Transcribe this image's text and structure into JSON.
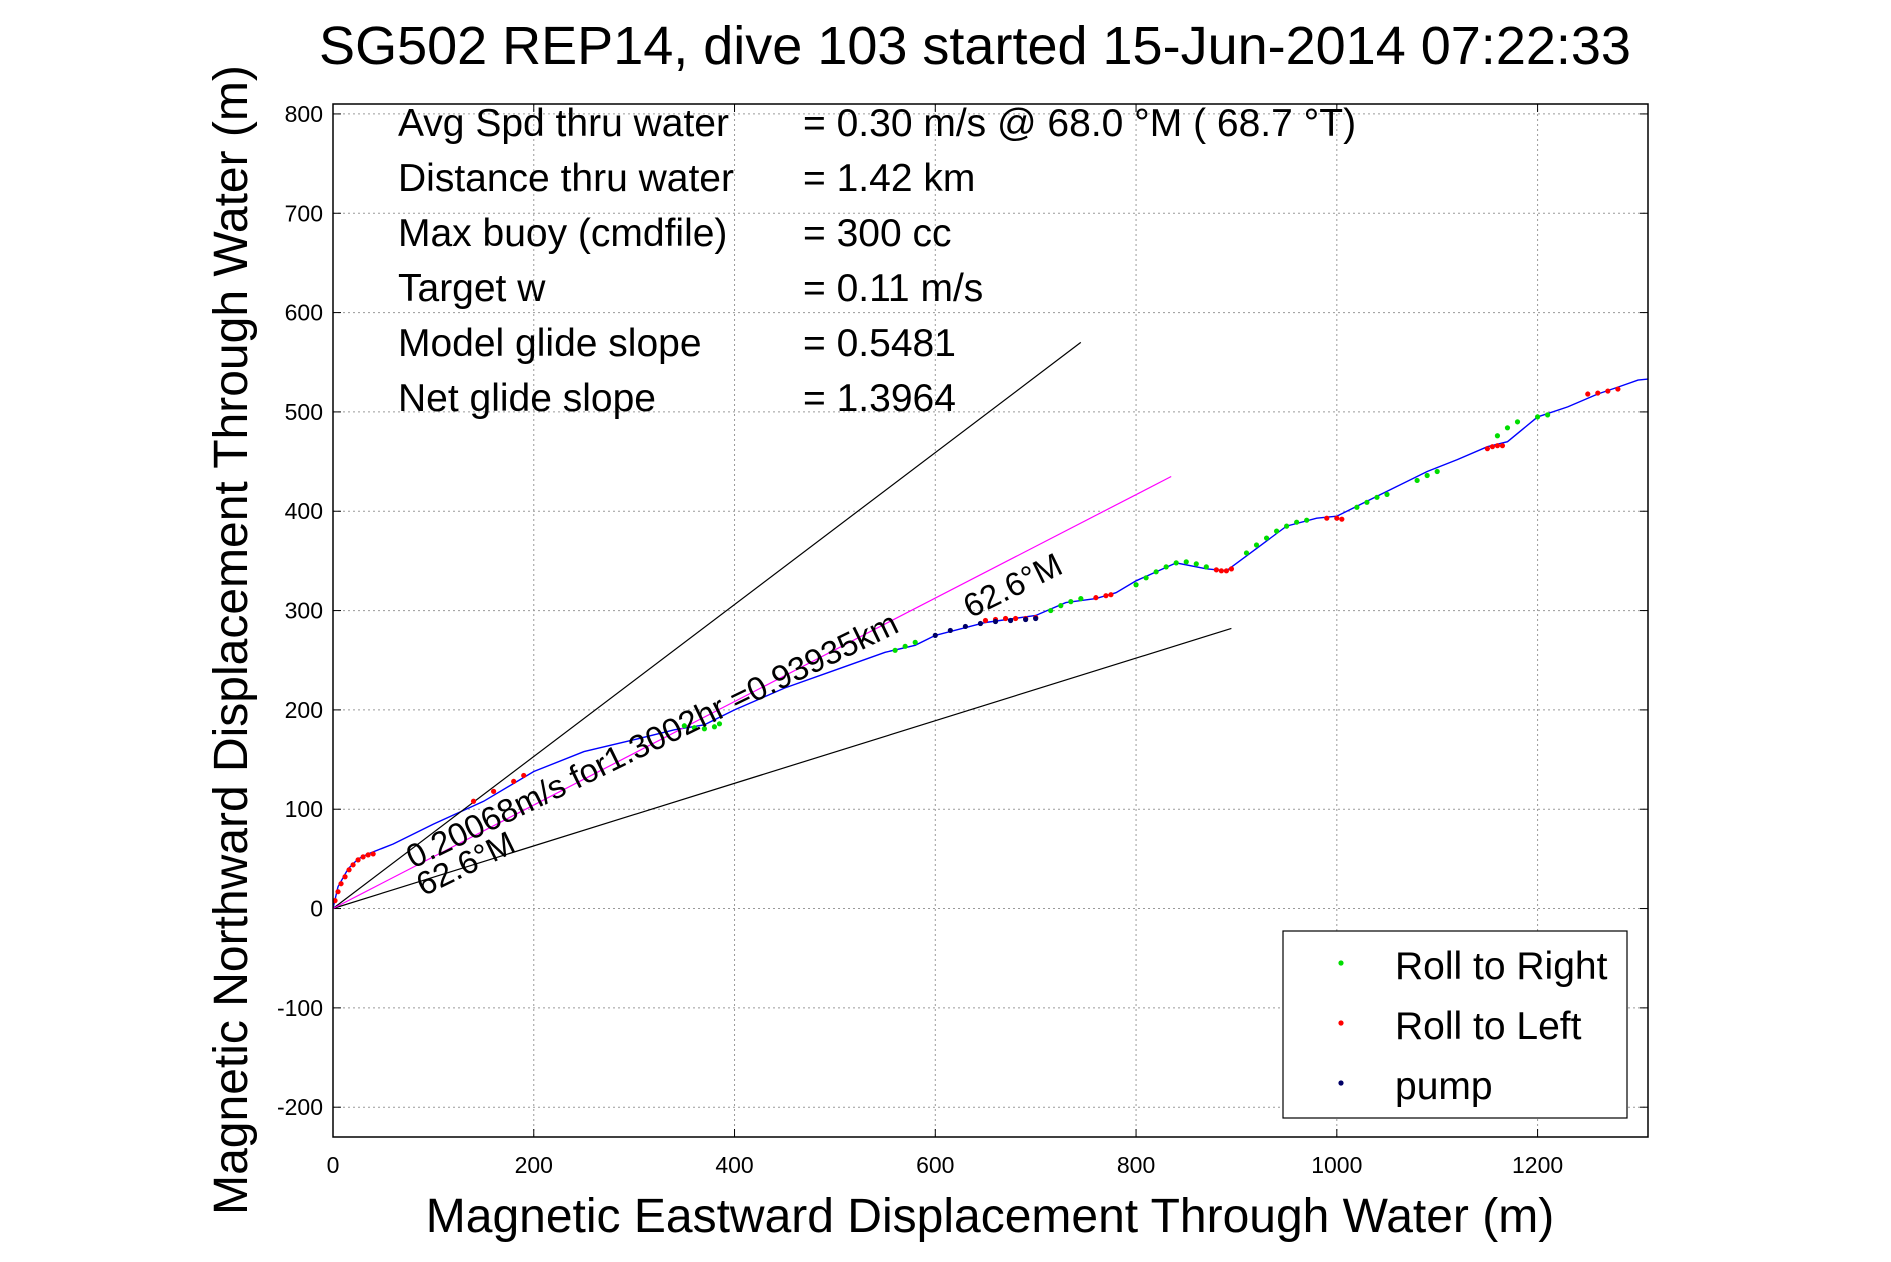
{
  "chart_data": {
    "type": "line",
    "title": "SG502 REP14, dive 103 started 15-Jun-2014 07:22:33",
    "xlabel": "Magnetic Eastward Displacement Through Water (m)",
    "ylabel": "Magnetic Northward Displacement Through Water (m)",
    "xlim": [
      0,
      1310
    ],
    "ylim": [
      -230,
      810
    ],
    "xticks": [
      0,
      200,
      400,
      600,
      800,
      1000,
      1200
    ],
    "yticks": [
      -200,
      -100,
      0,
      100,
      200,
      300,
      400,
      500,
      600,
      700,
      800
    ],
    "xtick_labels": [
      "0",
      "200",
      "400",
      "600",
      "800",
      "1000",
      "1200"
    ],
    "ytick_labels": [
      "-200",
      "-100",
      "0",
      "100",
      "200",
      "300",
      "400",
      "500",
      "600",
      "700",
      "800"
    ],
    "grid": true,
    "legend_position": "bottom-right",
    "stats": [
      {
        "label": "Avg Spd thru water",
        "value": "=  0.30 m/s @  68.0 °M ( 68.7 °T)"
      },
      {
        "label": "Distance thru water",
        "value": "=  1.42 km"
      },
      {
        "label": "Max buoy (cmdfile)",
        "value": "= 300 cc"
      },
      {
        "label": "Target w",
        "value": "= 0.11 m/s"
      },
      {
        "label": "Model glide slope",
        "value": "= 0.5481"
      },
      {
        "label": "Net glide slope",
        "value": "= 1.3964"
      }
    ],
    "annotations": [
      {
        "text": "0.20068m/s for1.3002hr =0.93935km",
        "x": 80,
        "y": 40,
        "angle_deg": -26
      },
      {
        "text": "62.6°M",
        "x": 635,
        "y": 292,
        "angle_deg": -26
      },
      {
        "text": "62.6°M",
        "x": 90,
        "y": 12,
        "angle_deg": -26
      }
    ],
    "series": [
      {
        "name": "track",
        "color": "#0000ff",
        "x": [
          0,
          5,
          15,
          25,
          35,
          60,
          100,
          150,
          200,
          250,
          300,
          340,
          370,
          400,
          450,
          500,
          550,
          580,
          600,
          650,
          700,
          730,
          760,
          780,
          800,
          840,
          870,
          890,
          910,
          950,
          980,
          1000,
          1030,
          1060,
          1090,
          1120,
          1150,
          1170,
          1200,
          1230,
          1260,
          1280,
          1300,
          1310
        ],
        "y": [
          0,
          22,
          40,
          50,
          55,
          65,
          85,
          108,
          138,
          158,
          170,
          180,
          185,
          200,
          222,
          240,
          258,
          265,
          275,
          288,
          295,
          308,
          312,
          318,
          330,
          348,
          342,
          340,
          355,
          385,
          393,
          395,
          410,
          425,
          440,
          452,
          465,
          470,
          495,
          505,
          518,
          525,
          532,
          533
        ]
      },
      {
        "name": "guide-upper",
        "color": "#000000",
        "x": [
          0,
          745
        ],
        "y": [
          0,
          570
        ]
      },
      {
        "name": "guide-lower",
        "color": "#000000",
        "x": [
          0,
          895
        ],
        "y": [
          0,
          282
        ]
      },
      {
        "name": "depth-averaged current",
        "color": "#ff00ff",
        "x": [
          0,
          835
        ],
        "y": [
          0,
          435
        ]
      },
      {
        "name": "Roll to Right",
        "color": "#00dd00",
        "marker": ".",
        "x": [
          350,
          360,
          370,
          380,
          385,
          560,
          570,
          580,
          715,
          725,
          735,
          745,
          800,
          810,
          820,
          830,
          840,
          850,
          860,
          870,
          910,
          920,
          930,
          940,
          950,
          960,
          970,
          1020,
          1030,
          1040,
          1050,
          1080,
          1090,
          1100,
          1160,
          1170,
          1180,
          1200,
          1210
        ],
        "y": [
          184,
          182,
          181,
          183,
          186,
          260,
          264,
          268,
          300,
          305,
          309,
          312,
          326,
          333,
          339,
          344,
          348,
          349,
          347,
          344,
          358,
          366,
          373,
          380,
          385,
          389,
          391,
          404,
          409,
          414,
          417,
          431,
          436,
          440,
          476,
          484,
          490,
          495,
          497
        ]
      },
      {
        "name": "Roll to Left",
        "color": "#ff0000",
        "marker": ".",
        "x": [
          2,
          5,
          8,
          12,
          16,
          20,
          25,
          30,
          35,
          40,
          140,
          160,
          180,
          190,
          650,
          660,
          670,
          680,
          690,
          700,
          760,
          770,
          775,
          880,
          885,
          890,
          895,
          990,
          1000,
          1005,
          1150,
          1155,
          1160,
          1165,
          1250,
          1260,
          1270,
          1280
        ],
        "y": [
          8,
          17,
          25,
          32,
          39,
          44,
          49,
          52,
          54,
          55,
          108,
          118,
          128,
          134,
          290,
          291,
          292,
          292,
          292,
          293,
          313,
          315,
          316,
          341,
          340,
          340,
          342,
          393,
          393,
          392,
          463,
          465,
          466,
          466,
          518,
          519,
          521,
          523
        ]
      },
      {
        "name": "pump",
        "color": "#000066",
        "marker": ".",
        "x": [
          600,
          615,
          630,
          645,
          660,
          675,
          690,
          700
        ],
        "y": [
          275,
          280,
          284,
          287,
          289,
          290,
          291,
          292
        ]
      }
    ]
  }
}
